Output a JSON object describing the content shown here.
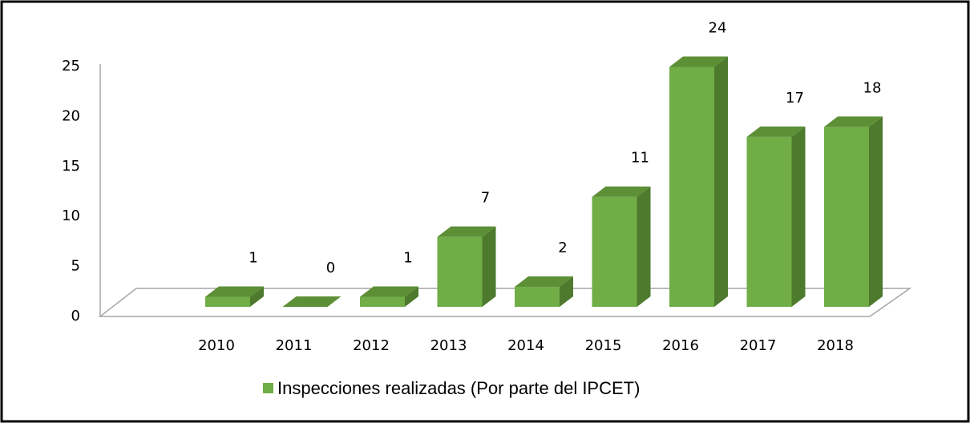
{
  "chart_data": {
    "type": "bar3d",
    "categories": [
      "2010",
      "2011",
      "2012",
      "2013",
      "2014",
      "2015",
      "2016",
      "2017",
      "2018"
    ],
    "series": [
      {
        "name": "Inspecciones realizadas (Por parte del IPCET)",
        "color": "#70ad47",
        "values": [
          1,
          0,
          1,
          7,
          2,
          11,
          24,
          17,
          18
        ]
      }
    ],
    "ylim": [
      0,
      25
    ],
    "yticks": [
      0,
      5,
      10,
      15,
      20,
      25
    ],
    "grid": false,
    "legend": "bottom"
  }
}
